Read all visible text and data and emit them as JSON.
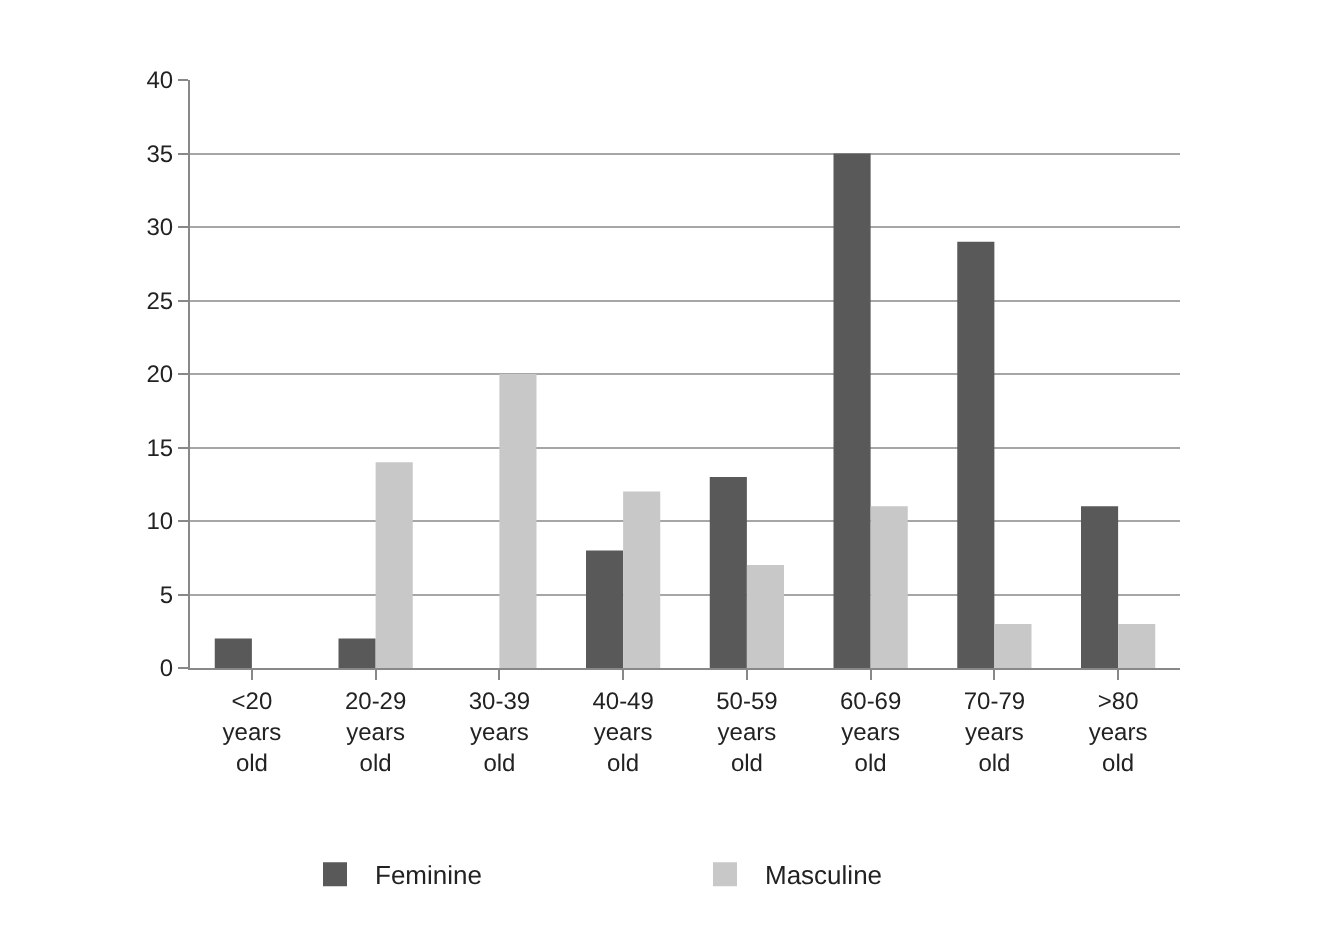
{
  "chart_data": {
    "type": "bar",
    "categories": [
      "<20 years old",
      "20-29 years old",
      "30-39 years old",
      "40-49 years old",
      "50-59 years old",
      "60-69 years old",
      "70-79 years old",
      ">80 years old"
    ],
    "series": [
      {
        "name": "Feminine",
        "color": "#595959",
        "values": [
          2,
          2,
          0,
          8,
          13,
          35,
          29,
          11
        ]
      },
      {
        "name": "Masculine",
        "color": "#c8c8c8",
        "values": [
          0,
          14,
          20,
          12,
          7,
          11,
          3,
          3
        ]
      }
    ],
    "ylim": [
      0,
      40
    ],
    "yticks": [
      0,
      5,
      10,
      15,
      20,
      25,
      30,
      35,
      40
    ],
    "grid": "y",
    "legend": "bottom"
  }
}
